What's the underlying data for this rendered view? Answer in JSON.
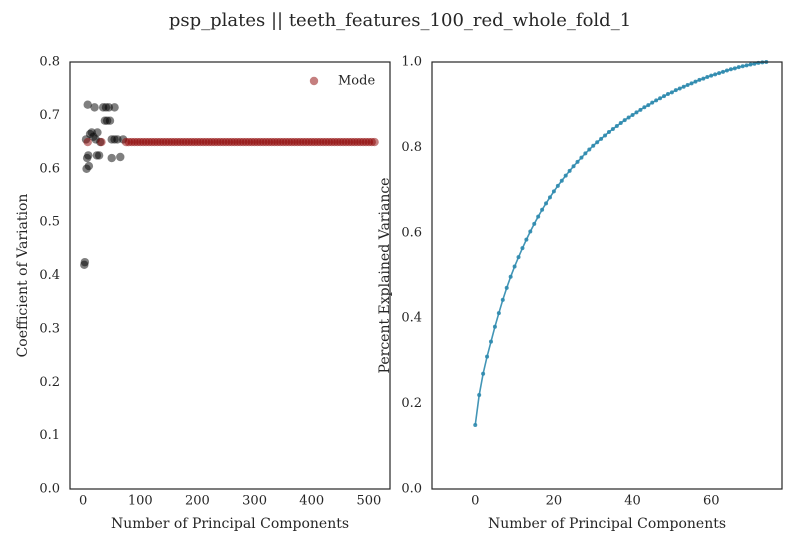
{
  "title": "psp_plates || teeth_features_100_red_whole_fold_1",
  "chart_data": [
    {
      "type": "scatter",
      "xlabel": "Number of Principal Components",
      "ylabel": "Coefficient of Variation",
      "xlim": [
        -23,
        537
      ],
      "ylim": [
        0,
        0.8
      ],
      "xticks": [
        0,
        100,
        200,
        300,
        400,
        500
      ],
      "yticks": [
        {
          "value": 0,
          "label": "0.0"
        },
        0.1,
        0.2,
        0.3,
        0.4,
        0.5,
        0.6,
        0.7,
        0.8
      ],
      "legend": "upper right",
      "series": [
        {
          "color": "#000000",
          "alpha": 0.5,
          "x": [
            2,
            3,
            5,
            8,
            6,
            10,
            7,
            9,
            12,
            15,
            18,
            20,
            25,
            22,
            24,
            28,
            30,
            35,
            40,
            45,
            38,
            42,
            47,
            50,
            55,
            50,
            55,
            60,
            65,
            70
          ],
          "values": [
            0.42,
            0.425,
            0.655,
            0.72,
            0.6,
            0.605,
            0.62,
            0.625,
            0.665,
            0.668,
            0.66,
            0.715,
            0.668,
            0.655,
            0.625,
            0.625,
            0.65,
            0.715,
            0.715,
            0.715,
            0.69,
            0.69,
            0.69,
            0.62,
            0.715,
            0.655,
            0.655,
            0.655,
            0.622,
            0.655
          ]
        },
        {
          "name": "Mode",
          "color": "#8b0000",
          "alpha": 0.5,
          "x": [
            8,
            32,
            75,
            80,
            85,
            90,
            95,
            100,
            105,
            110,
            115,
            120,
            125,
            130,
            135,
            140,
            145,
            150,
            155,
            160,
            165,
            170,
            175,
            180,
            185,
            190,
            195,
            200,
            205,
            210,
            215,
            220,
            225,
            230,
            235,
            240,
            245,
            250,
            255,
            260,
            265,
            270,
            275,
            280,
            285,
            290,
            295,
            300,
            305,
            310,
            315,
            320,
            325,
            330,
            335,
            340,
            345,
            350,
            355,
            360,
            365,
            370,
            375,
            380,
            385,
            390,
            395,
            400,
            405,
            410,
            415,
            420,
            425,
            430,
            435,
            440,
            445,
            450,
            455,
            460,
            465,
            470,
            475,
            480,
            485,
            490,
            495,
            500,
            505,
            510
          ],
          "values": [
            0.65,
            0.65,
            0.65,
            0.65,
            0.65,
            0.65,
            0.65,
            0.65,
            0.65,
            0.65,
            0.65,
            0.65,
            0.65,
            0.65,
            0.65,
            0.65,
            0.65,
            0.65,
            0.65,
            0.65,
            0.65,
            0.65,
            0.65,
            0.65,
            0.65,
            0.65,
            0.65,
            0.65,
            0.65,
            0.65,
            0.65,
            0.65,
            0.65,
            0.65,
            0.65,
            0.65,
            0.65,
            0.65,
            0.65,
            0.65,
            0.65,
            0.65,
            0.65,
            0.65,
            0.65,
            0.65,
            0.65,
            0.65,
            0.65,
            0.65,
            0.65,
            0.65,
            0.65,
            0.65,
            0.65,
            0.65,
            0.65,
            0.65,
            0.65,
            0.65,
            0.65,
            0.65,
            0.65,
            0.65,
            0.65,
            0.65,
            0.65,
            0.65,
            0.65,
            0.65,
            0.65,
            0.65,
            0.65,
            0.65,
            0.65,
            0.65,
            0.65,
            0.65,
            0.65,
            0.65,
            0.65,
            0.65,
            0.65,
            0.65,
            0.65,
            0.65,
            0.65,
            0.65,
            0.65,
            0.65
          ]
        }
      ]
    },
    {
      "type": "line",
      "xlabel": "Number of Principal Components",
      "ylabel": "Percent Explained Variance",
      "xlim": [
        -11,
        78
      ],
      "ylim": [
        0,
        1
      ],
      "xticks": [
        0,
        20,
        40,
        60
      ],
      "yticks": [
        {
          "value": 0,
          "label": "0.0"
        },
        0.2,
        0.4,
        0.6,
        0.8,
        {
          "value": 1,
          "label": "1.0"
        }
      ],
      "markers": true,
      "series": [
        {
          "color": "#2e8aae",
          "alpha": 0.9,
          "x": [
            0,
            1,
            2,
            3,
            4,
            5,
            6,
            7,
            8,
            9,
            10,
            11,
            12,
            13,
            14,
            15,
            16,
            17,
            18,
            19,
            20,
            21,
            22,
            23,
            24,
            25,
            26,
            27,
            28,
            29,
            30,
            31,
            32,
            33,
            34,
            35,
            36,
            37,
            38,
            39,
            40,
            41,
            42,
            43,
            44,
            45,
            46,
            47,
            48,
            49,
            50,
            51,
            52,
            53,
            54,
            55,
            56,
            57,
            58,
            59,
            60,
            61,
            62,
            63,
            64,
            65,
            66,
            67,
            68,
            69,
            70,
            71,
            72,
            73,
            74
          ],
          "values": [
            0.15,
            0.22,
            0.27,
            0.31,
            0.345,
            0.38,
            0.412,
            0.443,
            0.471,
            0.497,
            0.521,
            0.543,
            0.564,
            0.584,
            0.603,
            0.621,
            0.638,
            0.654,
            0.669,
            0.683,
            0.697,
            0.71,
            0.722,
            0.734,
            0.745,
            0.756,
            0.766,
            0.776,
            0.786,
            0.795,
            0.804,
            0.812,
            0.82,
            0.828,
            0.836,
            0.843,
            0.85,
            0.857,
            0.864,
            0.87,
            0.876,
            0.882,
            0.888,
            0.894,
            0.899,
            0.905,
            0.91,
            0.915,
            0.92,
            0.925,
            0.929,
            0.934,
            0.938,
            0.942,
            0.946,
            0.95,
            0.954,
            0.958,
            0.961,
            0.965,
            0.968,
            0.971,
            0.974,
            0.977,
            0.98,
            0.983,
            0.985,
            0.988,
            0.99,
            0.992,
            0.994,
            0.996,
            0.998,
            0.999,
            1.0
          ]
        }
      ]
    }
  ]
}
